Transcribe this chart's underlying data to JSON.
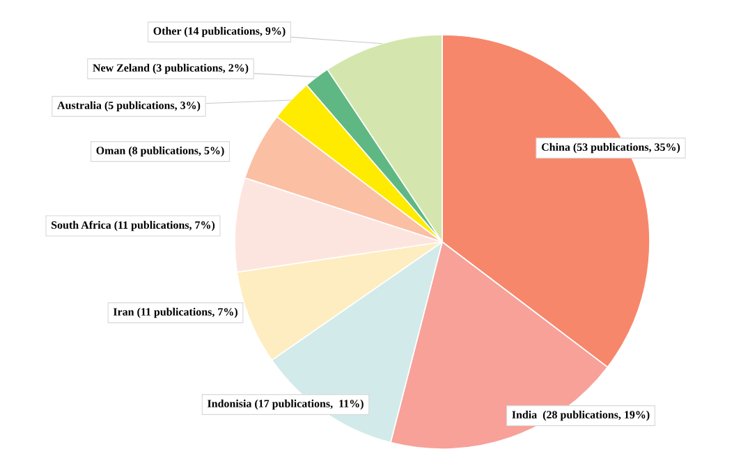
{
  "chart_data": {
    "type": "pie",
    "categories": [
      "China (53 publications, 35%)",
      "India  (28 publications, 19%)",
      "Indonisia (17 publications,  11%)",
      "Iran (11 publications, 7%)",
      "South Africa (11 publications, 7%)",
      "Oman (8 publications, 5%)",
      "Australia (5 publications, 3%)",
      "New Zeland (3 publications, 2%)",
      "Other (14 publications, 9%)"
    ],
    "values": [
      53,
      28,
      17,
      11,
      11,
      8,
      5,
      3,
      14
    ],
    "colors": [
      "#f7876b",
      "#f7a199",
      "#d2eaea",
      "#fdedc0",
      "#fde5df",
      "#fbbfa4",
      "#ffeb00",
      "#5fb883",
      "#d4e6ad"
    ]
  }
}
